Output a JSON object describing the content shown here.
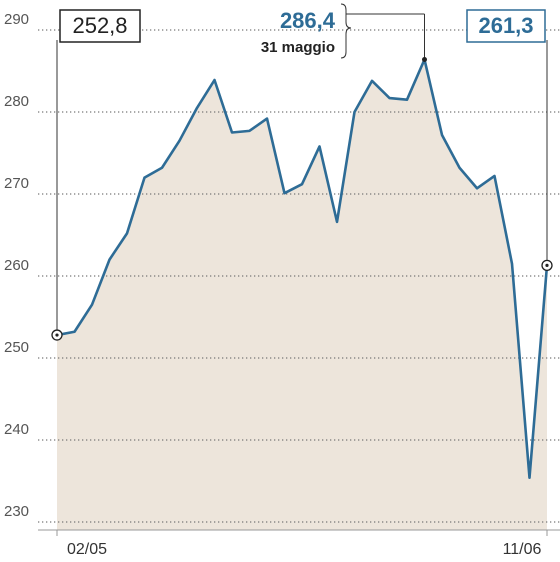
{
  "chart_data": {
    "type": "line",
    "categories": [
      "02/05",
      null,
      null,
      null,
      null,
      null,
      null,
      null,
      null,
      null,
      null,
      null,
      null,
      null,
      null,
      null,
      null,
      null,
      null,
      null,
      null,
      null,
      null,
      null,
      null,
      null,
      null,
      null,
      "11/06"
    ],
    "series": [
      {
        "color": "#2e6c96",
        "values": [
          252.8,
          253.2,
          256.5,
          262.0,
          265.2,
          272.0,
          273.2,
          276.5,
          280.5,
          283.9,
          277.5,
          277.7,
          279.2,
          270.1,
          271.2,
          275.8,
          266.6,
          280.0,
          283.8,
          281.7,
          281.5,
          286.4,
          277.2,
          273.2,
          270.7,
          272.2,
          261.5,
          235.4,
          261.3
        ],
        "value_labels": [
          "252,8",
          null,
          null,
          null,
          null,
          null,
          null,
          null,
          null,
          null,
          null,
          null,
          null,
          null,
          null,
          null,
          null,
          null,
          null,
          null,
          null,
          "286,4",
          null,
          null,
          null,
          null,
          null,
          null,
          "261,3"
        ]
      }
    ],
    "annotations": [
      {
        "text": "31 maggio"
      }
    ],
    "ylim": [
      230,
      290
    ],
    "yticks": [
      230,
      240,
      250,
      260,
      270,
      280,
      290
    ],
    "grid": true,
    "area_color": "#ede5db"
  }
}
